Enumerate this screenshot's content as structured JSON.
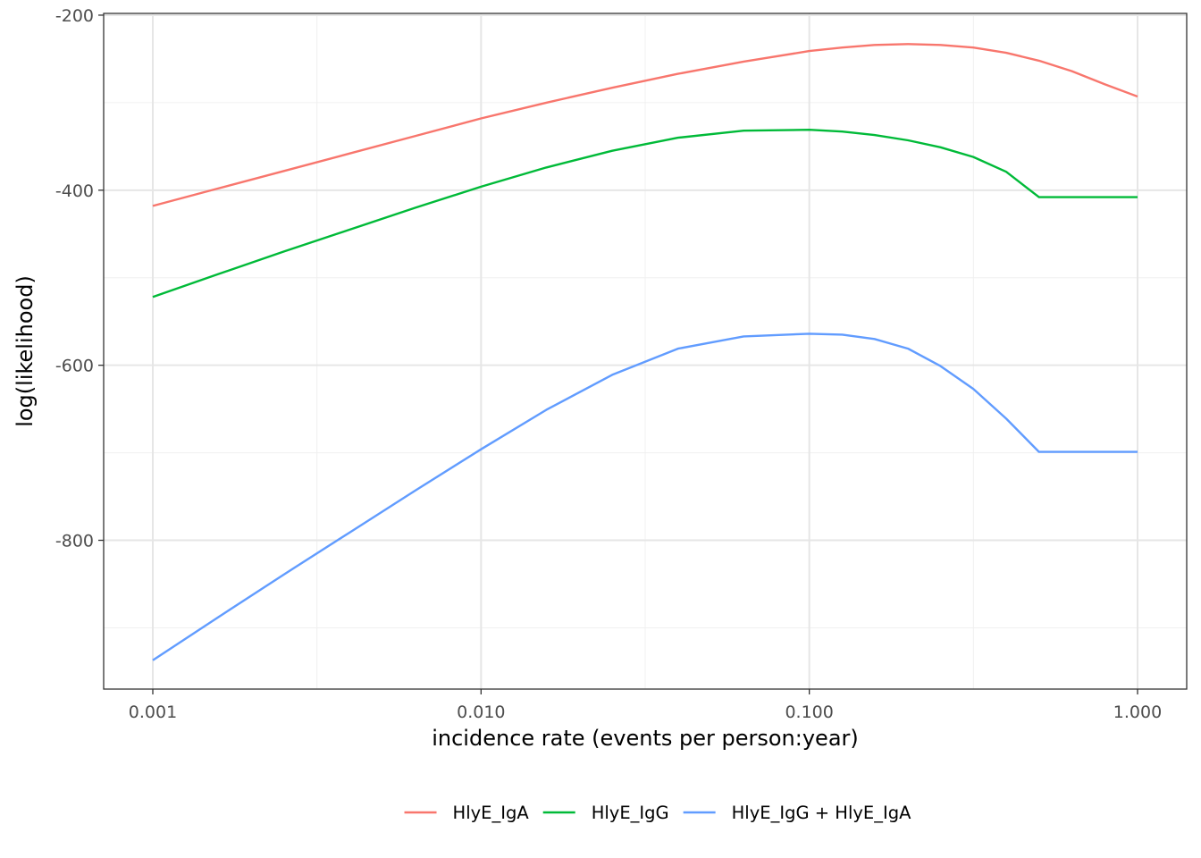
{
  "chart_data": {
    "type": "line",
    "xlabel": "incidence rate (events per person:year)",
    "ylabel": "log(likelihood)",
    "x_scale": "log10",
    "xlim": [
      0.001,
      1.0
    ],
    "ylim": [
      -970,
      -198
    ],
    "x_ticks": [
      {
        "value": 0.001,
        "label": "0.001"
      },
      {
        "value": 0.01,
        "label": "0.010"
      },
      {
        "value": 0.1,
        "label": "0.100"
      },
      {
        "value": 1.0,
        "label": "1.000"
      }
    ],
    "y_ticks": [
      {
        "value": -200,
        "label": "-200"
      },
      {
        "value": -400,
        "label": "-400"
      },
      {
        "value": -600,
        "label": "-600"
      },
      {
        "value": -800,
        "label": "-800"
      }
    ],
    "grid": true,
    "legend_position": "bottom",
    "x": [
      0.001,
      0.00158,
      0.00251,
      0.00398,
      0.00631,
      0.01,
      0.0158,
      0.0251,
      0.0398,
      0.0631,
      0.1,
      0.126,
      0.158,
      0.2,
      0.251,
      0.316,
      0.398,
      0.501,
      0.631,
      0.794,
      1.0
    ],
    "series": [
      {
        "name": "HlyE_IgA",
        "color": "#F8766D",
        "values": [
          -418,
          -398,
          -378,
          -358,
          -338,
          -318,
          -300,
          -283,
          -267,
          -253,
          -241,
          -237,
          -234,
          -233,
          -234,
          -237,
          -243,
          -252,
          -264,
          -279,
          -293
        ]
      },
      {
        "name": "HlyE_IgG",
        "color": "#00BA38",
        "values": [
          -522,
          -496,
          -470,
          -445,
          -420,
          -396,
          -374,
          -355,
          -340,
          -332,
          -331,
          -333,
          -337,
          -343,
          -351,
          -362,
          -379,
          -408,
          -408,
          -408,
          -408
        ]
      },
      {
        "name": "HlyE_IgG + HlyE_IgA",
        "color": "#619CFF",
        "values": [
          -937,
          -888,
          -839,
          -791,
          -743,
          -696,
          -651,
          -611,
          -581,
          -567,
          -564,
          -565,
          -570,
          -581,
          -601,
          -627,
          -661,
          -699,
          -699,
          -699,
          -699
        ]
      }
    ]
  }
}
